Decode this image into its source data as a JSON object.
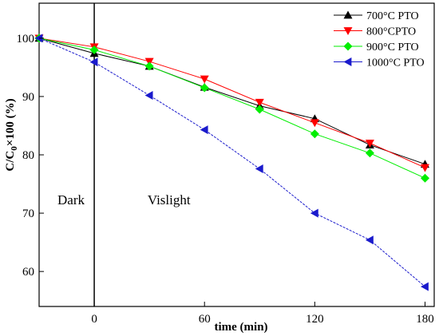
{
  "chart_data": {
    "type": "line",
    "title": "",
    "xlabel": "time (min)",
    "ylabel_main": "C/C",
    "ylabel_sub": "0",
    "ylabel_rest": "×100 (%)",
    "xlim": [
      -30,
      185
    ],
    "ylim": [
      54,
      106
    ],
    "x_ticks": [
      0,
      60,
      120,
      180
    ],
    "y_ticks": [
      60,
      70,
      80,
      90,
      100
    ],
    "divider_x": 0,
    "legend_position": "top-right",
    "grid": false,
    "annotations": [
      {
        "text": "Dark",
        "x": -20,
        "y": 71.5
      },
      {
        "text": "Vislight",
        "x": 29,
        "y": 71.5
      }
    ],
    "series": [
      {
        "name": "700°C PTO",
        "marker": "triangle-up",
        "color": "#000000",
        "x": [
          -30,
          0,
          30,
          60,
          90,
          120,
          150,
          180
        ],
        "y": [
          100,
          97.4,
          95.2,
          91.6,
          88.4,
          86.2,
          81.7,
          78.4
        ]
      },
      {
        "name": "800°CPTO",
        "marker": "triangle-down",
        "color": "#ff0000",
        "x": [
          -30,
          0,
          30,
          60,
          90,
          120,
          150,
          180
        ],
        "y": [
          100,
          98.5,
          96.0,
          93.0,
          89.0,
          85.5,
          82.0,
          77.8
        ]
      },
      {
        "name": "900°C PTO",
        "marker": "diamond",
        "color": "#00ee00",
        "x": [
          -30,
          0,
          30,
          60,
          90,
          120,
          150,
          180
        ],
        "y": [
          100,
          98.0,
          95.2,
          91.5,
          87.8,
          83.6,
          80.3,
          76.0
        ]
      },
      {
        "name": "1000°C PTO",
        "marker": "triangle-left",
        "color": "#1a1acc",
        "x": [
          -30,
          0,
          30,
          60,
          90,
          120,
          150,
          180
        ],
        "y": [
          100,
          95.9,
          90.2,
          84.3,
          77.6,
          70.0,
          65.4,
          57.4
        ]
      }
    ]
  }
}
